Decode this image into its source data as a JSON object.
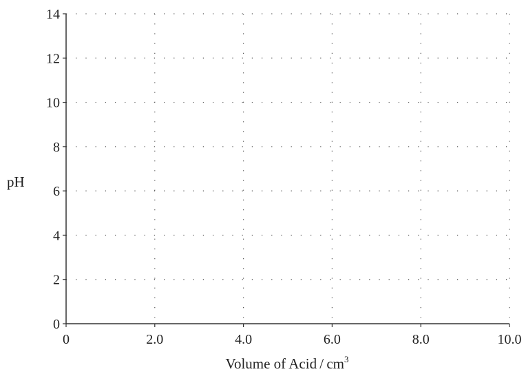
{
  "chart_data": {
    "type": "line",
    "title": "",
    "xlabel": "Volume of Acid / cm",
    "xlabel_superscript": "3",
    "ylabel": "pH",
    "xlim": [
      0,
      10
    ],
    "ylim": [
      0,
      14
    ],
    "x_ticks": [
      0,
      2,
      4,
      6,
      8,
      10
    ],
    "x_tick_labels": [
      "0",
      "2.0",
      "4.0",
      "6.0",
      "8.0",
      "10.0"
    ],
    "y_ticks": [
      0,
      2,
      4,
      6,
      8,
      10,
      12,
      14
    ],
    "y_tick_labels": [
      "0",
      "2",
      "4",
      "6",
      "8",
      "10",
      "12",
      "14"
    ],
    "grid": true,
    "grid_style": "dotted",
    "series": []
  }
}
